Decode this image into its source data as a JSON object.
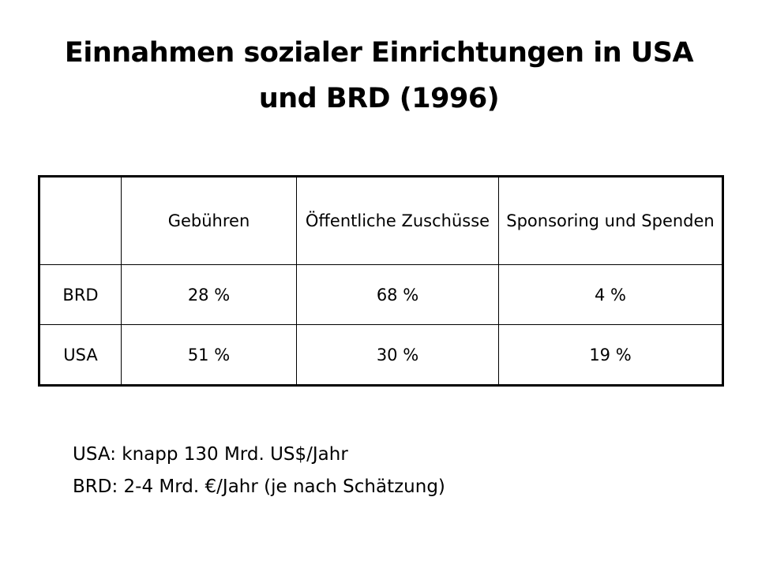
{
  "slide": {
    "title_line1": "Einnahmen sozialer Einrichtungen in USA",
    "title_line2": "und BRD (1996)"
  },
  "table": {
    "header": [
      "",
      "Gebühren",
      "Öffentliche Zuschüsse",
      "Sponsoring und Spenden"
    ],
    "rows": [
      [
        "BRD",
        "28 %",
        "68 %",
        "4 %"
      ],
      [
        "USA",
        "51 %",
        "30 %",
        "19 %"
      ]
    ]
  },
  "notes": [
    "USA: knapp 130 Mrd. US$/Jahr",
    "BRD: 2-4 Mrd. €/Jahr (je nach Schätzung)"
  ]
}
